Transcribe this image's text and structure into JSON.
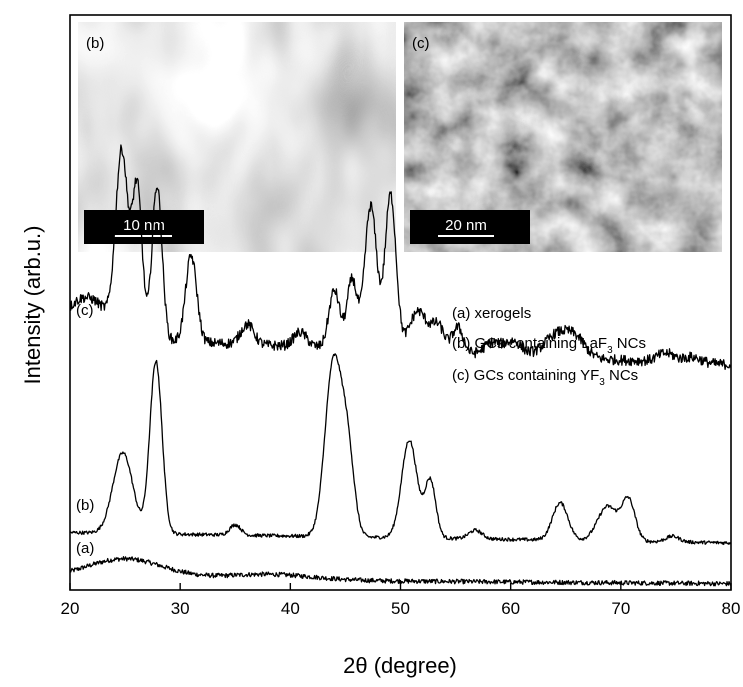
{
  "chart_data": {
    "type": "line",
    "xlabel_prefix": "2θ",
    "xlabel_unit": "(degree)",
    "ylabel": "Intensity (arb.u.)",
    "xlim": [
      20,
      80
    ],
    "x_ticks": [
      20,
      30,
      40,
      50,
      60,
      70,
      80
    ],
    "x_tick_labels": [
      "20",
      "30",
      "40",
      "50",
      "60",
      "70",
      "80"
    ],
    "y_ticks_shown": false,
    "legend": {
      "placement": "right-middle",
      "entries": [
        {
          "label": "(a) xerogels"
        },
        {
          "label": "(b) GCs containing LaF",
          "subscript": "3",
          "suffix": " NCs"
        },
        {
          "label": "(c) GCs containing YF",
          "subscript": "3",
          "suffix": " NCs"
        }
      ]
    },
    "series": [
      {
        "name": "(a)",
        "baseline": 0.02,
        "slope": -0.00015,
        "noise": 0.004,
        "peaks": [
          {
            "x": 25,
            "h": 0.035,
            "w": 3.5
          },
          {
            "x": 38,
            "h": 0.01,
            "w": 4.0
          }
        ]
      },
      {
        "name": "(b)",
        "baseline": 0.1,
        "slope": -0.0003,
        "noise": 0.003,
        "peaks": [
          {
            "x": 24.8,
            "h": 0.14,
            "w": 0.9
          },
          {
            "x": 27.8,
            "h": 0.3,
            "w": 0.55
          },
          {
            "x": 35.0,
            "h": 0.018,
            "w": 0.5
          },
          {
            "x": 43.9,
            "h": 0.3,
            "w": 0.75
          },
          {
            "x": 45.2,
            "h": 0.14,
            "w": 0.6
          },
          {
            "x": 50.8,
            "h": 0.17,
            "w": 0.7
          },
          {
            "x": 52.7,
            "h": 0.1,
            "w": 0.5
          },
          {
            "x": 56.8,
            "h": 0.015,
            "w": 0.6
          },
          {
            "x": 64.5,
            "h": 0.065,
            "w": 0.7
          },
          {
            "x": 68.8,
            "h": 0.06,
            "w": 0.9
          },
          {
            "x": 70.7,
            "h": 0.07,
            "w": 0.6
          },
          {
            "x": 74.7,
            "h": 0.01,
            "w": 0.6
          }
        ]
      },
      {
        "name": "(c)",
        "baseline": 0.44,
        "slope": -0.0008,
        "noise": 0.009,
        "peaks": [
          {
            "x": 21.5,
            "h": 0.07,
            "w": 2.0
          },
          {
            "x": 24.7,
            "h": 0.31,
            "w": 0.55
          },
          {
            "x": 26.1,
            "h": 0.26,
            "w": 0.45
          },
          {
            "x": 27.9,
            "h": 0.27,
            "w": 0.45
          },
          {
            "x": 31.0,
            "h": 0.15,
            "w": 0.5
          },
          {
            "x": 36.1,
            "h": 0.035,
            "w": 0.6
          },
          {
            "x": 40.9,
            "h": 0.025,
            "w": 0.6
          },
          {
            "x": 44.0,
            "h": 0.1,
            "w": 0.5
          },
          {
            "x": 45.6,
            "h": 0.12,
            "w": 0.45
          },
          {
            "x": 47.3,
            "h": 0.25,
            "w": 0.55
          },
          {
            "x": 49.1,
            "h": 0.27,
            "w": 0.5
          },
          {
            "x": 51.6,
            "h": 0.07,
            "w": 0.8
          },
          {
            "x": 53.4,
            "h": 0.045,
            "w": 0.6
          },
          {
            "x": 55.2,
            "h": 0.045,
            "w": 0.5
          },
          {
            "x": 58.3,
            "h": 0.02,
            "w": 0.7
          },
          {
            "x": 60.2,
            "h": 0.025,
            "w": 0.8
          },
          {
            "x": 64.3,
            "h": 0.04,
            "w": 1.2
          },
          {
            "x": 66.0,
            "h": 0.025,
            "w": 0.9
          },
          {
            "x": 74.1,
            "h": 0.015,
            "w": 0.8
          },
          {
            "x": 76.5,
            "h": 0.01,
            "w": 0.8
          }
        ]
      }
    ],
    "insets": [
      {
        "label": "(b)",
        "scale_bar": "10 nm",
        "texture": "light-streaky"
      },
      {
        "label": "(c)",
        "scale_bar": "20 nm",
        "texture": "grey-mottled"
      }
    ]
  }
}
